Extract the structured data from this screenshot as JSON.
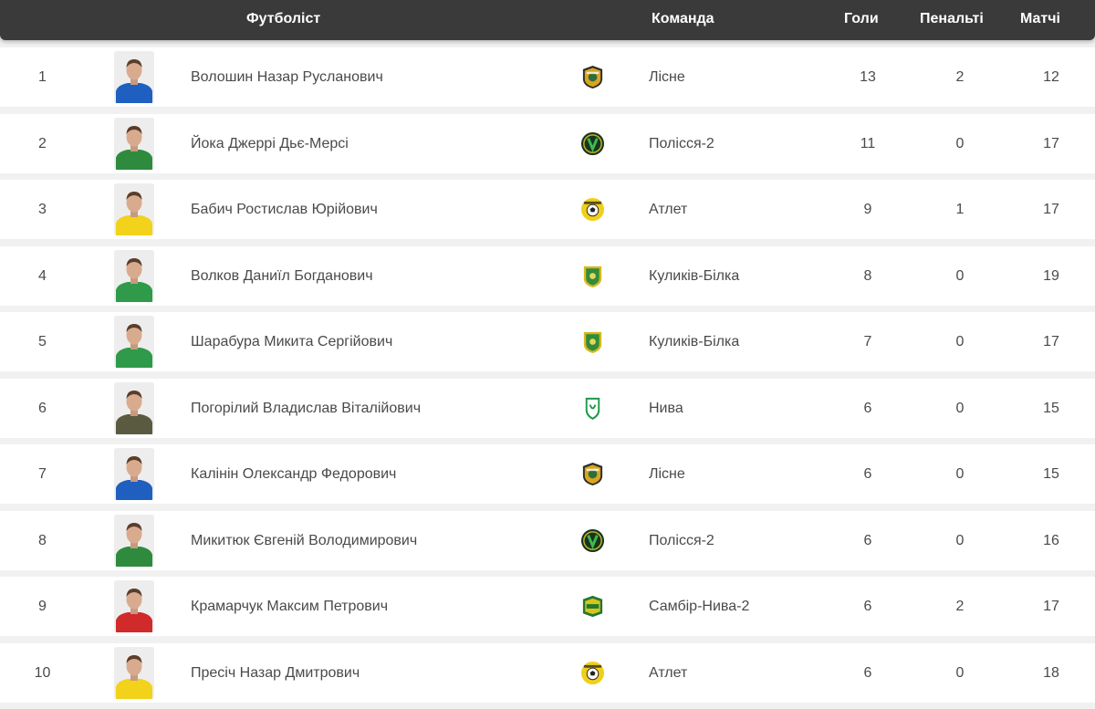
{
  "header": {
    "player": "Футболіст",
    "team": "Команда",
    "goals": "Голи",
    "penalties": "Пенальті",
    "matches": "Матчі"
  },
  "players": [
    {
      "rank": "1",
      "name": "Волошин Назар Русланович",
      "team": "Лісне",
      "goals": "13",
      "penalties": "2",
      "matches": "12",
      "shirt": "#1f5fc0",
      "logo": "lisne"
    },
    {
      "rank": "2",
      "name": "Йока Джеррі Дьє-Мерсі",
      "team": "Полісся-2",
      "goals": "11",
      "penalties": "0",
      "matches": "17",
      "shirt": "#2e8b3e",
      "logo": "polissia"
    },
    {
      "rank": "3",
      "name": "Бабич Ростислав Юрійович",
      "team": "Атлет",
      "goals": "9",
      "penalties": "1",
      "matches": "17",
      "shirt": "#f2d21a",
      "logo": "atlet"
    },
    {
      "rank": "4",
      "name": "Волков Даниїл Богданович",
      "team": "Куликів-Білка",
      "goals": "8",
      "penalties": "0",
      "matches": "19",
      "shirt": "#2e9a4a",
      "logo": "kulykiv"
    },
    {
      "rank": "5",
      "name": "Шарабура Микита Сергійович",
      "team": "Куликів-Білка",
      "goals": "7",
      "penalties": "0",
      "matches": "17",
      "shirt": "#2e9a4a",
      "logo": "kulykiv"
    },
    {
      "rank": "6",
      "name": "Погорілий Владислав Віталійович",
      "team": "Нива",
      "goals": "6",
      "penalties": "0",
      "matches": "15",
      "shirt": "#5a5a40",
      "logo": "nyva"
    },
    {
      "rank": "7",
      "name": "Калінін Олександр Федорович",
      "team": "Лісне",
      "goals": "6",
      "penalties": "0",
      "matches": "15",
      "shirt": "#1f5fc0",
      "logo": "lisne"
    },
    {
      "rank": "8",
      "name": "Микитюк Євгеній Володимирович",
      "team": "Полісся-2",
      "goals": "6",
      "penalties": "0",
      "matches": "16",
      "shirt": "#2e8b3e",
      "logo": "polissia"
    },
    {
      "rank": "9",
      "name": "Крамарчук Максим Петрович",
      "team": "Самбір-Нива-2",
      "goals": "6",
      "penalties": "2",
      "matches": "17",
      "shirt": "#d12a2a",
      "logo": "sambir"
    },
    {
      "rank": "10",
      "name": "Пресіч Назар Дмитрович",
      "team": "Атлет",
      "goals": "6",
      "penalties": "0",
      "matches": "18",
      "shirt": "#f2d21a",
      "logo": "atlet"
    }
  ]
}
